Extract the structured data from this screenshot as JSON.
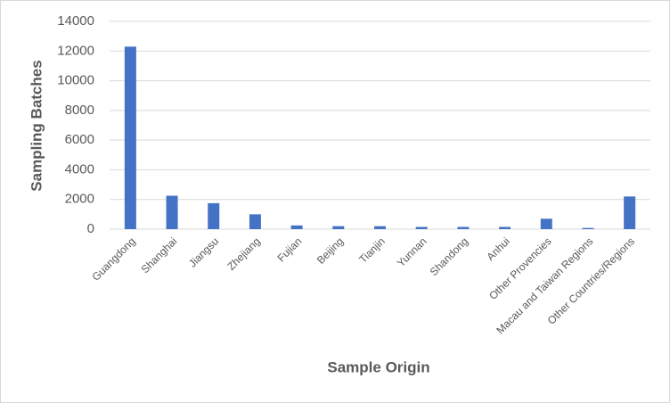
{
  "chart_data": {
    "type": "bar",
    "x_label": "Sample Origin",
    "y_label": "Sampling Batches",
    "categories": [
      "Guangdong",
      "Shanghai",
      "Jiangsu",
      "Zhejiang",
      "Fujian",
      "Beijing",
      "Tianjin",
      "Yunnan",
      "Shandong",
      "Anhui",
      "Other Provencies",
      "Macau and Taiwan Regions",
      "Other Countries/Regions"
    ],
    "values": [
      12300,
      2250,
      1750,
      1000,
      250,
      200,
      200,
      150,
      150,
      150,
      700,
      80,
      2200
    ],
    "color": "#4472c4",
    "ylim": [
      0,
      14000
    ],
    "yticks": [
      0,
      2000,
      4000,
      6000,
      8000,
      10000,
      12000,
      14000
    ],
    "grid": true
  }
}
